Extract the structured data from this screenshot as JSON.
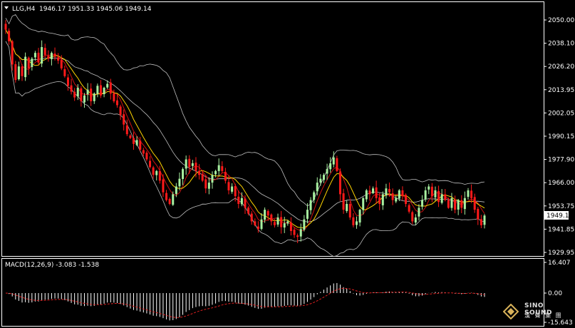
{
  "header": {
    "arrow_icon": "dropdown-triangle-icon",
    "symbol_tf": "LLG,H4",
    "ohlc": "1946.17 1951.33 1945.06 1949.14"
  },
  "price_axis": {
    "ticks": [
      "2050.00",
      "2038.10",
      "2026.20",
      "2013.95",
      "2002.05",
      "1990.15",
      "1977.90",
      "1966.00",
      "1953.75",
      "1941.85",
      "1929.95"
    ],
    "current_price_label": "1949.14"
  },
  "macd_panel": {
    "title": "MACD(12,26,9) -3.083 -1.538",
    "ticks": [
      "16.407",
      "0.00",
      "-15.643"
    ]
  },
  "logo": {
    "line1": "SINO SOUND",
    "line2": "漢 聲 集 團"
  },
  "colors": {
    "background": "#000000",
    "up_candle": "#a8f0a0",
    "down_candle": "#ff1a1a",
    "bands": "#bfbfbf",
    "ma_fast": "#ffd400",
    "ma_slow": "#cc1111",
    "macd_hist": "#ffffff",
    "macd_signal": "#e02020"
  },
  "chart_data": {
    "type": "candlestick",
    "symbol": "LLG",
    "timeframe": "H4",
    "ylim": [
      1929.95,
      2050.0
    ],
    "close": [
      2045,
      2039,
      2027,
      2019,
      2026,
      2021,
      2031,
      2025,
      2030,
      2033,
      2028,
      2036,
      2032,
      2030,
      2033,
      2031,
      2029,
      2025,
      2021,
      2016,
      2013,
      2010,
      2015,
      2008,
      2011,
      2014,
      2008,
      2012,
      2016,
      2011,
      2015,
      2017,
      2012,
      2008,
      2006,
      2001,
      1996,
      1991,
      1989,
      1986,
      1988,
      1983,
      1981,
      1978,
      1974,
      1970,
      1972,
      1967,
      1961,
      1957,
      1955,
      1960,
      1964,
      1968,
      1973,
      1978,
      1974,
      1976,
      1972,
      1970,
      1967,
      1963,
      1966,
      1970,
      1972,
      1975,
      1972,
      1967,
      1962,
      1964,
      1959,
      1955,
      1958,
      1953,
      1950,
      1946,
      1944,
      1942,
      1947,
      1952,
      1949,
      1946,
      1944,
      1948,
      1943,
      1945,
      1946,
      1941,
      1939,
      1938,
      1942,
      1947,
      1952,
      1957,
      1961,
      1966,
      1968,
      1970,
      1973,
      1976,
      1979,
      1972,
      1960,
      1952,
      1955,
      1948,
      1944,
      1946,
      1952,
      1958,
      1962,
      1960,
      1963,
      1958,
      1955,
      1960,
      1963,
      1961,
      1957,
      1958,
      1962,
      1959,
      1955,
      1951,
      1946,
      1948,
      1953,
      1957,
      1962,
      1964,
      1959,
      1962,
      1956,
      1960,
      1957,
      1953,
      1958,
      1952,
      1957,
      1953,
      1958,
      1962,
      1958,
      1952,
      1947,
      1944,
      1949
    ]
  }
}
